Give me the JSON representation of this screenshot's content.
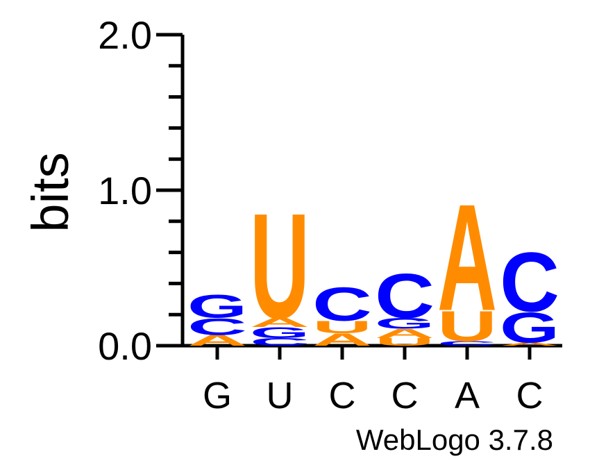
{
  "chart_data": {
    "type": "sequence-logo",
    "ylabel": "bits",
    "ylim": [
      0,
      2
    ],
    "yticks": [
      "0.0",
      "1.0",
      "2.0"
    ],
    "y_major_values": [
      0,
      1,
      2
    ],
    "y_minor_step": 0.2,
    "positions": [
      {
        "label": "G",
        "stack": [
          {
            "letter": "A",
            "height": 0.07
          },
          {
            "letter": "C",
            "height": 0.11
          },
          {
            "letter": "G",
            "height": 0.15
          }
        ]
      },
      {
        "label": "U",
        "stack": [
          {
            "letter": "C",
            "height": 0.05
          },
          {
            "letter": "G",
            "height": 0.07
          },
          {
            "letter": "A",
            "height": 0.06
          },
          {
            "letter": "U",
            "height": 0.69
          }
        ]
      },
      {
        "label": "C",
        "stack": [
          {
            "letter": "A",
            "height": 0.08
          },
          {
            "letter": "U",
            "height": 0.08
          },
          {
            "letter": "C",
            "height": 0.22
          }
        ]
      },
      {
        "label": "C",
        "stack": [
          {
            "letter": "U",
            "height": 0.05
          },
          {
            "letter": "A",
            "height": 0.06
          },
          {
            "letter": "G",
            "height": 0.07
          },
          {
            "letter": "C",
            "height": 0.29
          }
        ]
      },
      {
        "label": "A",
        "stack": [
          {
            "letter": "C",
            "height": 0.03
          },
          {
            "letter": "U",
            "height": 0.2
          },
          {
            "letter": "A",
            "height": 0.7
          }
        ]
      },
      {
        "label": "C",
        "stack": [
          {
            "letter": "A",
            "height": 0.02
          },
          {
            "letter": "G",
            "height": 0.2
          },
          {
            "letter": "C",
            "height": 0.39
          }
        ]
      }
    ],
    "colors": {
      "A": "#ff8c00",
      "U": "#ff8c00",
      "C": "#0000ff",
      "G": "#0000ff"
    },
    "grid": false,
    "legend": "none"
  },
  "footer": {
    "credit": "WebLogo 3.7.8"
  }
}
